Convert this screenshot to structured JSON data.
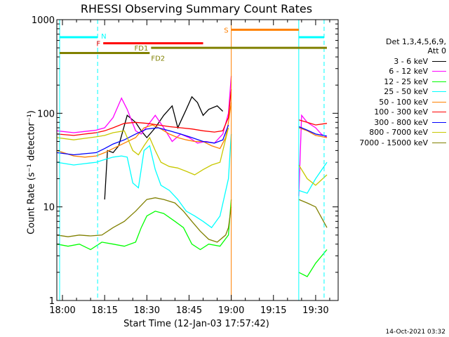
{
  "chart_data": {
    "type": "line",
    "title": "RHESSI Observing Summary Count Rates",
    "xlabel": "Start Time (12-Jan-03 17:57:42)",
    "ylabel": "Count Rate (s⁻¹ detector⁻¹)",
    "yscale": "log",
    "ylim": [
      1,
      1000
    ],
    "xlim_minutes": [
      -2,
      98
    ],
    "x_ticks": [
      {
        "t": 0,
        "label": "18:00"
      },
      {
        "t": 15,
        "label": "18:15"
      },
      {
        "t": 30,
        "label": "18:30"
      },
      {
        "t": 45,
        "label": "18:45"
      },
      {
        "t": 60,
        "label": "19:00"
      },
      {
        "t": 75,
        "label": "19:15"
      },
      {
        "t": 90,
        "label": "19:30"
      }
    ],
    "y_ticks": [
      {
        "v": 1,
        "label": "1"
      },
      {
        "v": 10,
        "label": "10"
      },
      {
        "v": 100,
        "label": "100"
      },
      {
        "v": 1000,
        "label": "1000"
      }
    ],
    "legend_header": [
      "Det 1,3,4,5,6,9,",
      "Att 0"
    ],
    "series": [
      {
        "name": "3 - 6 keV",
        "color": "#000000",
        "points": [
          [
            15,
            12
          ],
          [
            16,
            40
          ],
          [
            18,
            38
          ],
          [
            20,
            45
          ],
          [
            23,
            95
          ],
          [
            26,
            80
          ],
          [
            28,
            65
          ],
          [
            30,
            55
          ],
          [
            33,
            70
          ],
          [
            36,
            95
          ],
          [
            39,
            120
          ],
          [
            41,
            70
          ],
          [
            44,
            110
          ],
          [
            46,
            150
          ],
          [
            48,
            130
          ],
          [
            50,
            95
          ],
          [
            52,
            110
          ],
          [
            55,
            120
          ],
          [
            57,
            105
          ]
        ]
      },
      {
        "name": "6 - 12 keV",
        "color": "#ff00ff",
        "points": [
          [
            -2,
            65
          ],
          [
            4,
            62
          ],
          [
            8,
            64
          ],
          [
            12,
            66
          ],
          [
            15,
            70
          ],
          [
            18,
            90
          ],
          [
            21,
            145
          ],
          [
            23,
            110
          ],
          [
            26,
            65
          ],
          [
            28,
            60
          ],
          [
            30,
            72
          ],
          [
            33,
            95
          ],
          [
            36,
            70
          ],
          [
            39,
            50
          ],
          [
            42,
            60
          ],
          [
            45,
            55
          ],
          [
            48,
            48
          ],
          [
            51,
            50
          ],
          [
            54,
            48
          ],
          [
            57,
            60
          ],
          [
            59,
            100
          ],
          [
            60,
            250
          ],
          [
            84,
            13
          ],
          [
            85,
            95
          ],
          [
            87,
            80
          ],
          [
            90,
            70
          ],
          [
            92,
            60
          ],
          [
            94,
            55
          ]
        ]
      },
      {
        "name": "12 - 25 keV",
        "color": "#00ff00",
        "points": [
          [
            -2,
            4
          ],
          [
            2,
            3.8
          ],
          [
            6,
            4
          ],
          [
            10,
            3.5
          ],
          [
            14,
            4.2
          ],
          [
            18,
            4
          ],
          [
            22,
            3.8
          ],
          [
            26,
            4.2
          ],
          [
            28,
            6
          ],
          [
            30,
            8
          ],
          [
            33,
            9
          ],
          [
            36,
            8.5
          ],
          [
            40,
            7
          ],
          [
            43,
            6
          ],
          [
            46,
            4
          ],
          [
            49,
            3.5
          ],
          [
            52,
            4
          ],
          [
            56,
            3.8
          ],
          [
            59,
            5
          ],
          [
            60,
            12
          ],
          [
            84,
            2
          ],
          [
            87,
            1.8
          ],
          [
            90,
            2.5
          ],
          [
            94,
            3.5
          ]
        ]
      },
      {
        "name": "25 - 50 keV",
        "color": "#00ffff",
        "points": [
          [
            -2,
            30
          ],
          [
            4,
            28
          ],
          [
            8,
            29
          ],
          [
            12,
            30
          ],
          [
            15,
            32
          ],
          [
            18,
            34
          ],
          [
            21,
            35
          ],
          [
            23,
            34
          ],
          [
            25,
            18
          ],
          [
            27,
            16
          ],
          [
            29,
            40
          ],
          [
            31,
            45
          ],
          [
            33,
            25
          ],
          [
            35,
            17
          ],
          [
            38,
            15
          ],
          [
            41,
            12
          ],
          [
            44,
            9
          ],
          [
            47,
            8
          ],
          [
            50,
            7
          ],
          [
            53,
            6
          ],
          [
            56,
            8
          ],
          [
            59,
            20
          ],
          [
            60,
            60
          ],
          [
            84,
            15
          ],
          [
            87,
            14
          ],
          [
            90,
            20
          ],
          [
            94,
            30
          ]
        ]
      },
      {
        "name": "50 - 100 keV",
        "color": "#ff8000",
        "points": [
          [
            -2,
            40
          ],
          [
            4,
            35
          ],
          [
            8,
            34
          ],
          [
            12,
            35
          ],
          [
            15,
            38
          ],
          [
            18,
            42
          ],
          [
            22,
            48
          ],
          [
            26,
            55
          ],
          [
            29,
            70
          ],
          [
            32,
            75
          ],
          [
            35,
            68
          ],
          [
            38,
            60
          ],
          [
            41,
            55
          ],
          [
            44,
            52
          ],
          [
            47,
            50
          ],
          [
            50,
            50
          ],
          [
            53,
            45
          ],
          [
            56,
            42
          ],
          [
            58,
            55
          ],
          [
            59,
            80
          ],
          [
            60,
            130
          ],
          [
            84,
            70
          ],
          [
            87,
            65
          ],
          [
            90,
            58
          ],
          [
            94,
            55
          ]
        ]
      },
      {
        "name": "100 - 300 keV",
        "color": "#ff0000",
        "points": [
          [
            -2,
            60
          ],
          [
            4,
            58
          ],
          [
            8,
            60
          ],
          [
            12,
            62
          ],
          [
            15,
            65
          ],
          [
            18,
            70
          ],
          [
            22,
            78
          ],
          [
            26,
            80
          ],
          [
            30,
            78
          ],
          [
            34,
            75
          ],
          [
            38,
            72
          ],
          [
            42,
            70
          ],
          [
            46,
            68
          ],
          [
            50,
            65
          ],
          [
            54,
            63
          ],
          [
            57,
            65
          ],
          [
            59,
            90
          ],
          [
            60,
            180
          ],
          [
            84,
            85
          ],
          [
            87,
            80
          ],
          [
            90,
            75
          ],
          [
            94,
            78
          ]
        ]
      },
      {
        "name": "300 - 800 keV",
        "color": "#0000ff",
        "points": [
          [
            -2,
            38
          ],
          [
            4,
            36
          ],
          [
            8,
            37
          ],
          [
            12,
            38
          ],
          [
            15,
            42
          ],
          [
            18,
            47
          ],
          [
            22,
            52
          ],
          [
            26,
            60
          ],
          [
            30,
            68
          ],
          [
            34,
            70
          ],
          [
            38,
            65
          ],
          [
            42,
            60
          ],
          [
            46,
            55
          ],
          [
            50,
            50
          ],
          [
            54,
            48
          ],
          [
            57,
            52
          ],
          [
            59,
            75
          ],
          [
            84,
            72
          ],
          [
            87,
            66
          ],
          [
            90,
            60
          ],
          [
            94,
            57
          ]
        ]
      },
      {
        "name": "800 - 7000 keV",
        "color": "#c8c800",
        "points": [
          [
            -2,
            55
          ],
          [
            4,
            52
          ],
          [
            8,
            54
          ],
          [
            12,
            56
          ],
          [
            15,
            58
          ],
          [
            18,
            62
          ],
          [
            22,
            65
          ],
          [
            25,
            40
          ],
          [
            27,
            36
          ],
          [
            29,
            45
          ],
          [
            31,
            55
          ],
          [
            33,
            40
          ],
          [
            35,
            30
          ],
          [
            38,
            27
          ],
          [
            41,
            26
          ],
          [
            44,
            24
          ],
          [
            47,
            22
          ],
          [
            50,
            25
          ],
          [
            53,
            28
          ],
          [
            56,
            30
          ],
          [
            59,
            70
          ],
          [
            84,
            28
          ],
          [
            87,
            20
          ],
          [
            90,
            17
          ],
          [
            94,
            22
          ]
        ]
      },
      {
        "name": "7000 - 15000 keV",
        "color": "#808000",
        "points": [
          [
            -2,
            5
          ],
          [
            2,
            4.8
          ],
          [
            6,
            5
          ],
          [
            10,
            4.9
          ],
          [
            14,
            5
          ],
          [
            18,
            6
          ],
          [
            22,
            7
          ],
          [
            26,
            9
          ],
          [
            30,
            12
          ],
          [
            33,
            12.5
          ],
          [
            36,
            12
          ],
          [
            40,
            11
          ],
          [
            43,
            9
          ],
          [
            46,
            7
          ],
          [
            49,
            5.5
          ],
          [
            52,
            4.5
          ],
          [
            55,
            4.2
          ],
          [
            58,
            5
          ],
          [
            59,
            6
          ],
          [
            60,
            10
          ],
          [
            84,
            12
          ],
          [
            87,
            11
          ],
          [
            90,
            10
          ],
          [
            94,
            6
          ]
        ]
      }
    ],
    "annotations": {
      "eclipse_regions": [
        [
          60,
          84
        ]
      ],
      "dashed_markers": [
        [
          12.5,
          "#00ffff"
        ],
        [
          93,
          "#00ffff"
        ]
      ],
      "solid_markers": [
        [
          -1,
          "#00ffff"
        ],
        [
          60,
          "#ff8000"
        ],
        [
          84,
          "#00ffff"
        ]
      ],
      "bars": [
        {
          "label": "N",
          "color": "#00ffff",
          "from": -1,
          "to": 12.5,
          "y": 650,
          "label_pos": "right"
        },
        {
          "label": "N",
          "color": "#00ffff",
          "from": 84,
          "to": 93,
          "y": 650,
          "label_pos": "none"
        },
        {
          "label": "F",
          "color": "#ff0000",
          "from": 14.5,
          "to": 50,
          "y": 560,
          "label_pos": "left"
        },
        {
          "label": "S",
          "color": "#ff8000",
          "from": 60,
          "to": 84,
          "y": 780,
          "label_pos": "left"
        },
        {
          "label": "FD1",
          "color": "#808000",
          "from": 31.5,
          "to": 94,
          "y": 500,
          "label_pos": "left"
        },
        {
          "label": "FD2",
          "color": "#808000",
          "from": -1,
          "to": 31,
          "y": 440,
          "label_pos": "right_below"
        }
      ]
    }
  },
  "footer": "14-Oct-2021 03:32"
}
